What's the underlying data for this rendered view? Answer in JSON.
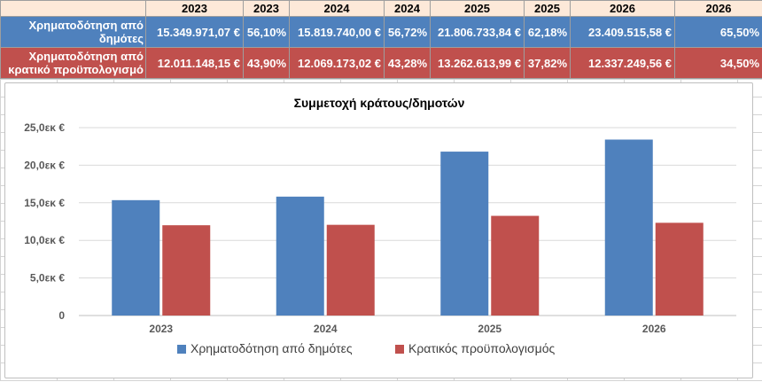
{
  "table": {
    "header": [
      "2023",
      "2023",
      "2024",
      "2024",
      "2025",
      "2025",
      "2026",
      "2026"
    ],
    "rows": [
      {
        "label": "Χρηματοδότηση από δημότες",
        "cells": [
          "15.349.971,07 €",
          "56,10%",
          "15.819.740,00 €",
          "56,72%",
          "21.806.733,84 €",
          "62,18%",
          "23.409.515,58 €",
          "65,50%"
        ]
      },
      {
        "label": "Χρηματοδότηση από κρατικό προϋπολογισμό",
        "cells": [
          "12.011.148,15 €",
          "43,90%",
          "12.069.173,02 €",
          "43,28%",
          "13.262.613,99 €",
          "37,82%",
          "12.337.249,56 €",
          "34,50%"
        ]
      }
    ]
  },
  "colors": {
    "series1": "#4f81bd",
    "series2": "#c0504d",
    "header_bg": "#fde9d9"
  },
  "chart_data": {
    "type": "bar",
    "title": "Συμμετοχή κράτους/δημοτών",
    "categories": [
      "2023",
      "2024",
      "2025",
      "2026"
    ],
    "series": [
      {
        "name": "Χρηματοδότηση από δημότες",
        "values": [
          15349971.07,
          15819740.0,
          21806733.84,
          23409515.58
        ],
        "color": "#4f81bd"
      },
      {
        "name": "Κρατικός προϋπολογισμός",
        "values": [
          12011148.15,
          12069173.02,
          13262613.99,
          12337249.56
        ],
        "color": "#c0504d"
      }
    ],
    "ylim": [
      0,
      25000000
    ],
    "yticks": [
      0,
      5000000,
      10000000,
      15000000,
      20000000,
      25000000
    ],
    "ytick_labels": [
      "0",
      "5,0εκ €",
      "10,0εκ €",
      "15,0εκ €",
      "20,0εκ €",
      "25,0εκ €"
    ],
    "xlabel": "",
    "ylabel": "",
    "grid": true,
    "legend": "bottom"
  }
}
